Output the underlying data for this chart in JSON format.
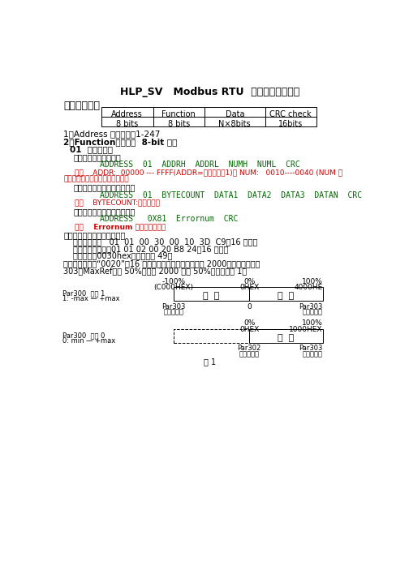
{
  "title": "HLP_SV   Modbus RTU  标准通讯协议格式",
  "subtitle": "通信资料格式",
  "table_headers": [
    "Address",
    "Function",
    "Data",
    "CRC check"
  ],
  "table_values": [
    "8 bits",
    "8 bits",
    "N×8bits",
    "16bits"
  ],
  "line1": "1）Address 通讯地址：1-247",
  "line2": "2）Function：命令码  8-bit 命令",
  "line3": "01  读线圈状态",
  "line4": "上位机发送数据格式：",
  "line5": "ADDRESS  01  ADDRH  ADDRL  NUMH  NUML  CRC",
  "line6": "注：    ADDR:  00000 --- FFFF(ADDR=线圈地址－1)。 NUM:   0010----0040 (NUM 为",
  "line7": "要读线圈状态值的二进制数位数）",
  "line8": "正确时变频器返回数据格式：",
  "line9": "ADDRESS  01  BYTECOUNT  DATA1  DATA2  DATA3  DATAN  CRC",
  "line10": "注：    BYTECOUNT:读取的字数",
  "line11": "错误时变频器返回数据格式：",
  "line12": "ADDRESS   0X81  Errornum  CRC",
  "line13": "注：    Errornum 为错误类型代码",
  "line14": "如：要检测变频器的输出频率",
  "line15": "应发送数据：   01  01  00  30  00  10  3D  C9（16 进制）",
  "line16": "变频器返回数据：01 01 02 00 20 B8 24（16 进制）",
  "line17": "发送数据：0030hex（线圈地址 49）",
  "line18": "返回的数据位为“0020”（16 进制），高位与低位互换，为 2000。即输出频率为",
  "line19": "303（MaxRef）的 50%。关于 2000 对应 50%，具体见图 1。",
  "diag1_labels_top": [
    "-100%",
    "0%",
    "100%"
  ],
  "diag1_labels_hex": [
    "(C000HEX)",
    "0HEX",
    "4000HE"
  ],
  "diag1_par_left1": "Par300  设为 1",
  "diag1_par_left2": "1: -max — +max",
  "diag1_box1_text": "反  转",
  "diag1_box2_text": "正  转",
  "diag1_bot1": [
    "Par303",
    "0",
    "Par303"
  ],
  "diag1_bot2": [
    "频率最大值",
    "",
    "频率最大值"
  ],
  "diag2_labels_top": [
    "0%",
    "100%"
  ],
  "diag2_labels_hex": [
    "0HEX",
    "1000HEX"
  ],
  "diag2_par_left1": "Par300  设为 0",
  "diag2_par_left2": "0: min — +max",
  "diag2_box_text": "正  转",
  "diag2_bot1": [
    "Par302",
    "Par303"
  ],
  "diag2_bot2": [
    "频率最小值",
    "频率最大值"
  ],
  "fig_label": "图 1",
  "bg_color": "#ffffff",
  "red_color": "#cc0000",
  "mono_color": "#006600"
}
